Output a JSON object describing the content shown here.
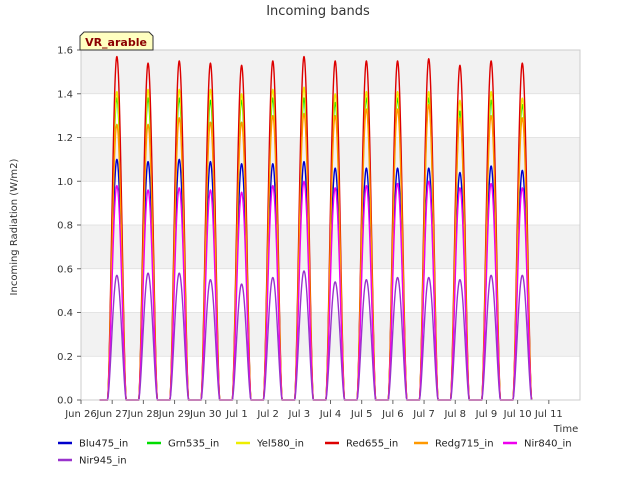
{
  "chart_data": {
    "type": "line",
    "title": "Incoming bands",
    "site_label": "VR_arable",
    "xlabel": "Time",
    "ylabel": "Incoming Radiation (W/m2)",
    "ylim": [
      0.0,
      1.6
    ],
    "xlim": [
      0,
      16
    ],
    "yticks": [
      {
        "value": 0.0,
        "label": "0.0"
      },
      {
        "value": 0.2,
        "label": "0.2"
      },
      {
        "value": 0.4,
        "label": "0.4"
      },
      {
        "value": 0.6,
        "label": "0.6"
      },
      {
        "value": 0.8,
        "label": "0.8"
      },
      {
        "value": 1.0,
        "label": "1.0"
      },
      {
        "value": 1.2,
        "label": "1.2"
      },
      {
        "value": 1.4,
        "label": "1.4"
      },
      {
        "value": 1.6,
        "label": "1.6"
      }
    ],
    "xticks": [
      {
        "value": 0,
        "label": "Jun 26"
      },
      {
        "value": 1,
        "label": "Jun 27"
      },
      {
        "value": 2,
        "label": "Jun 28"
      },
      {
        "value": 3,
        "label": "Jun 29"
      },
      {
        "value": 4,
        "label": "Jun 30"
      },
      {
        "value": 5,
        "label": "Jul 1"
      },
      {
        "value": 6,
        "label": "Jul 2"
      },
      {
        "value": 7,
        "label": "Jul 3"
      },
      {
        "value": 8,
        "label": "Jul 4"
      },
      {
        "value": 9,
        "label": "Jul 5"
      },
      {
        "value": 10,
        "label": "Jul 6"
      },
      {
        "value": 11,
        "label": "Jul 7"
      },
      {
        "value": 12,
        "label": "Jul 8"
      },
      {
        "value": 13,
        "label": "Jul 9"
      },
      {
        "value": 14,
        "label": "Jul 10"
      },
      {
        "value": 15,
        "label": "Jul 11"
      }
    ],
    "day_peak_offsets": [
      1.15,
      2.15,
      3.15,
      4.15,
      5.15,
      6.15,
      7.15,
      8.15,
      9.15,
      10.15,
      11.15,
      12.15,
      13.15,
      14.15
    ],
    "day_half_width": 0.3,
    "data_start": 0.6,
    "data_end": 14.45,
    "series": [
      {
        "name": "Blu475_in",
        "color": "#0000cc",
        "peaks": [
          1.1,
          1.09,
          1.1,
          1.09,
          1.08,
          1.08,
          1.09,
          1.06,
          1.06,
          1.06,
          1.06,
          1.04,
          1.07,
          1.05
        ]
      },
      {
        "name": "Grn535_in",
        "color": "#00dd00",
        "peaks": [
          1.38,
          1.38,
          1.38,
          1.37,
          1.37,
          1.38,
          1.38,
          1.36,
          1.38,
          1.38,
          1.38,
          1.32,
          1.37,
          1.35
        ]
      },
      {
        "name": "Yel580_in",
        "color": "#eeee00",
        "peaks": [
          1.41,
          1.42,
          1.42,
          1.42,
          1.4,
          1.42,
          1.43,
          1.4,
          1.41,
          1.41,
          1.41,
          1.37,
          1.41,
          1.38
        ]
      },
      {
        "name": "Red655_in",
        "color": "#dd0000",
        "peaks": [
          1.57,
          1.54,
          1.55,
          1.54,
          1.53,
          1.55,
          1.57,
          1.55,
          1.55,
          1.55,
          1.56,
          1.53,
          1.55,
          1.54
        ]
      },
      {
        "name": "Redg715_in",
        "color": "#ff9900",
        "peaks": [
          1.26,
          1.26,
          1.29,
          1.27,
          1.27,
          1.3,
          1.31,
          1.3,
          1.33,
          1.33,
          1.35,
          1.29,
          1.3,
          1.29
        ]
      },
      {
        "name": "Nir840_in",
        "color": "#ee00ee",
        "peaks": [
          0.98,
          0.96,
          0.97,
          0.96,
          0.95,
          0.98,
          1.0,
          0.97,
          0.98,
          0.99,
          1.0,
          0.97,
          0.99,
          0.97
        ]
      },
      {
        "name": "Nir945_in",
        "color": "#9933cc",
        "peaks": [
          0.57,
          0.58,
          0.58,
          0.55,
          0.53,
          0.56,
          0.59,
          0.54,
          0.55,
          0.56,
          0.56,
          0.55,
          0.57,
          0.57
        ]
      }
    ]
  }
}
